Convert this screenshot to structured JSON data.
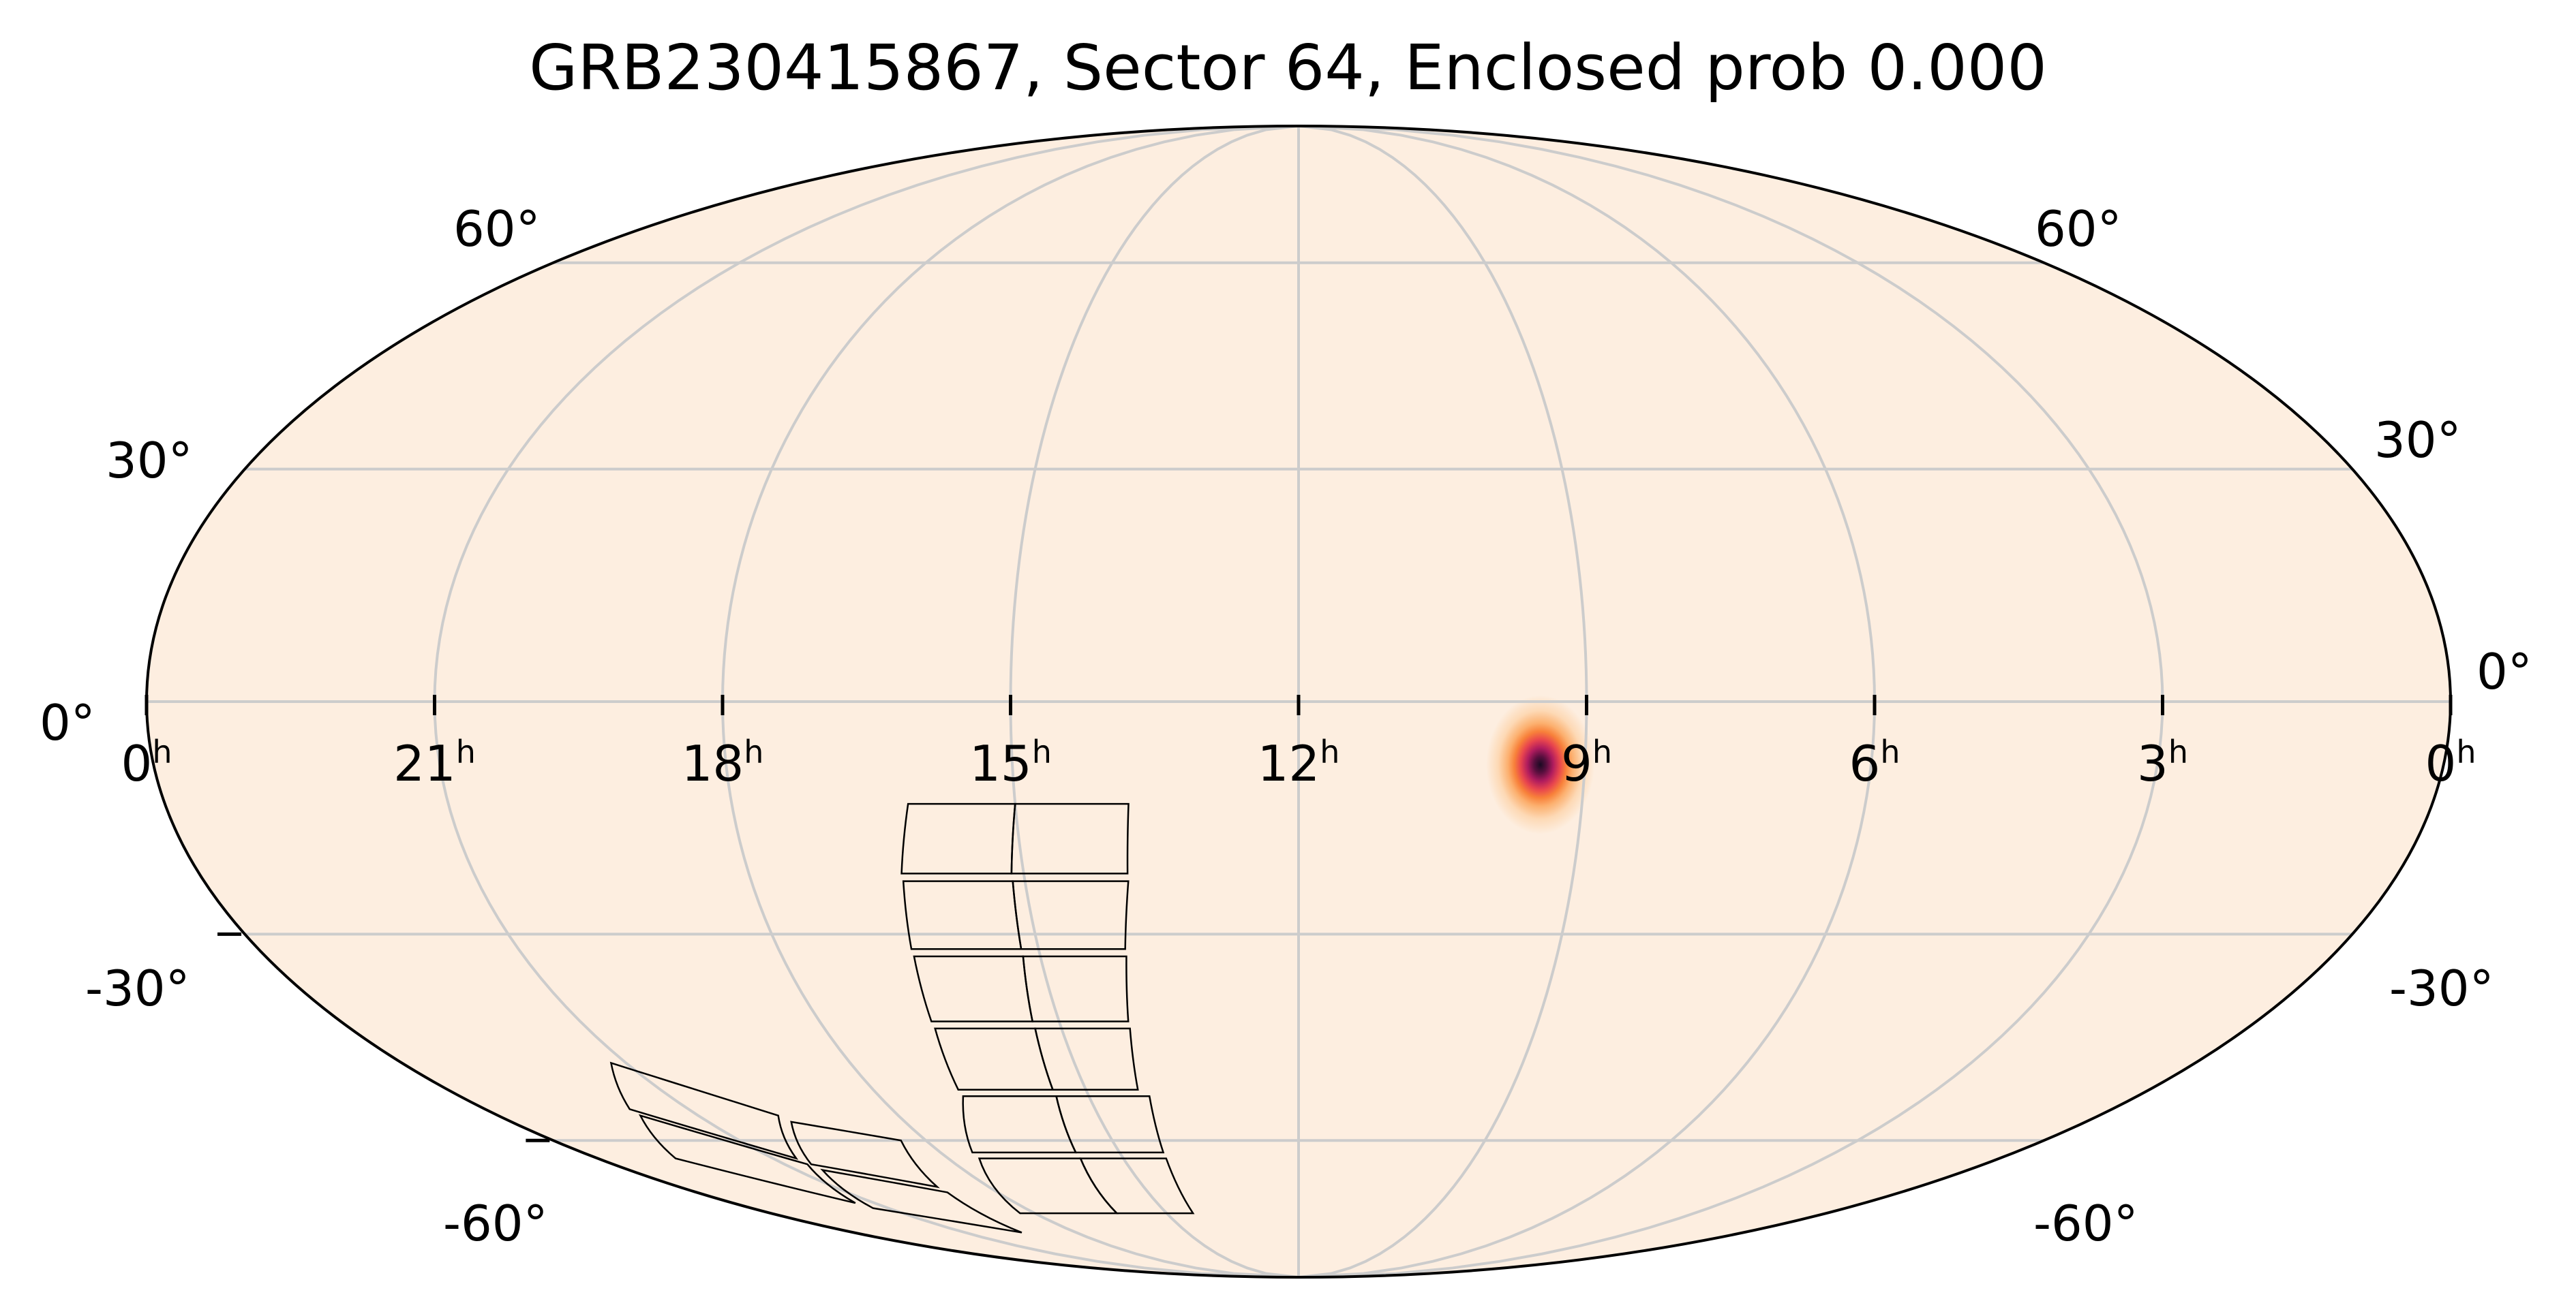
{
  "title": "GRB230415867, Sector 64, Enclosed prob 0.000",
  "colors": {
    "background": "#ffffff",
    "map_fill": "#fdeee0",
    "grid": "#cccccc",
    "outline": "#000000",
    "footprint": "#000000",
    "prob_colormap": [
      "#fdeee0",
      "#fdd9b5",
      "#fcb06f",
      "#f8813a",
      "#e8454e",
      "#b01c5e",
      "#5a0f3f",
      "#1a0a22"
    ]
  },
  "chart_data": {
    "type": "heatmap",
    "projection": "mollweide",
    "coordinate_frame": "equatorial",
    "ra_reversed": true,
    "grid": true,
    "ra_tick_labels": [
      {
        "ra_hours": 24,
        "text": "0",
        "unit": "h"
      },
      {
        "ra_hours": 21,
        "text": "21",
        "unit": "h"
      },
      {
        "ra_hours": 18,
        "text": "18",
        "unit": "h"
      },
      {
        "ra_hours": 15,
        "text": "15",
        "unit": "h"
      },
      {
        "ra_hours": 12,
        "text": "12",
        "unit": "h"
      },
      {
        "ra_hours": 9,
        "text": "9",
        "unit": "h"
      },
      {
        "ra_hours": 6,
        "text": "6",
        "unit": "h"
      },
      {
        "ra_hours": 3,
        "text": "3",
        "unit": "h"
      },
      {
        "ra_hours": 0,
        "text": "0",
        "unit": "h"
      }
    ],
    "dec_tick_labels_left": [
      {
        "dec": 60,
        "text": "60°"
      },
      {
        "dec": 30,
        "text": "30°"
      },
      {
        "dec": 0,
        "text": "0°"
      },
      {
        "dec": -30,
        "text": "-30°"
      },
      {
        "dec": -60,
        "text": "-60°"
      }
    ],
    "dec_tick_labels_right": [
      {
        "dec": 60,
        "text": "60°"
      },
      {
        "dec": 30,
        "text": "30°"
      },
      {
        "dec": 0,
        "text": "0°"
      },
      {
        "dec": -30,
        "text": "-30°"
      },
      {
        "dec": -60,
        "text": "-60°"
      }
    ],
    "probability_peak": {
      "ra_deg": 142,
      "dec_deg": -8,
      "sigma_deg": 3.5
    },
    "enclosed_prob": 0.0,
    "sector": 64,
    "footprint_cameras": [
      [
        [
          [
            207,
            -13
          ],
          [
            225,
            -13
          ],
          [
            227,
            -22
          ],
          [
            208,
            -22
          ]
        ],
        [
          [
            208,
            -23
          ],
          [
            227,
            -23
          ],
          [
            228,
            -32
          ],
          [
            210,
            -32
          ]
        ],
        [
          [
            225,
            -13
          ],
          [
            242,
            -13
          ],
          [
            245,
            -22
          ],
          [
            227,
            -22
          ]
        ],
        [
          [
            227,
            -23
          ],
          [
            245,
            -23
          ],
          [
            247,
            -32
          ],
          [
            228,
            -32
          ]
        ]
      ],
      [
        [
          [
            210,
            -33
          ],
          [
            228,
            -33
          ],
          [
            230,
            -42
          ],
          [
            212,
            -42
          ]
        ],
        [
          [
            212,
            -43
          ],
          [
            230,
            -43
          ],
          [
            232,
            -52
          ],
          [
            214,
            -52
          ]
        ],
        [
          [
            228,
            -33
          ],
          [
            247,
            -33
          ],
          [
            249,
            -42
          ],
          [
            230,
            -42
          ]
        ],
        [
          [
            230,
            -43
          ],
          [
            249,
            -43
          ],
          [
            252,
            -52
          ],
          [
            232,
            -52
          ]
        ]
      ],
      [
        [
          [
            212,
            -53
          ],
          [
            232,
            -53
          ],
          [
            236,
            -62
          ],
          [
            214,
            -62
          ]
        ],
        [
          [
            214,
            -63
          ],
          [
            236,
            -63
          ],
          [
            242,
            -73
          ],
          [
            216,
            -73
          ]
        ],
        [
          [
            232,
            -53
          ],
          [
            252,
            -53
          ],
          [
            262,
            -62
          ],
          [
            236,
            -62
          ]
        ],
        [
          [
            236,
            -63
          ],
          [
            262,
            -63
          ],
          [
            275,
            -73
          ],
          [
            242,
            -73
          ]
        ]
      ],
      [
        [
          [
            276,
            -60
          ],
          [
            296,
            -57
          ],
          [
            308,
            -64
          ],
          [
            285,
            -68
          ]
        ],
        [
          [
            285,
            -69
          ],
          [
            308,
            -65
          ],
          [
            320,
            -72
          ],
          [
            292,
            -77
          ]
        ],
        [
          [
            297,
            -56
          ],
          [
            318,
            -48
          ],
          [
            328,
            -55
          ],
          [
            309,
            -63
          ]
        ],
        [
          [
            309,
            -64
          ],
          [
            328,
            -56
          ],
          [
            340,
            -63
          ],
          [
            321,
            -71
          ]
        ]
      ]
    ]
  }
}
